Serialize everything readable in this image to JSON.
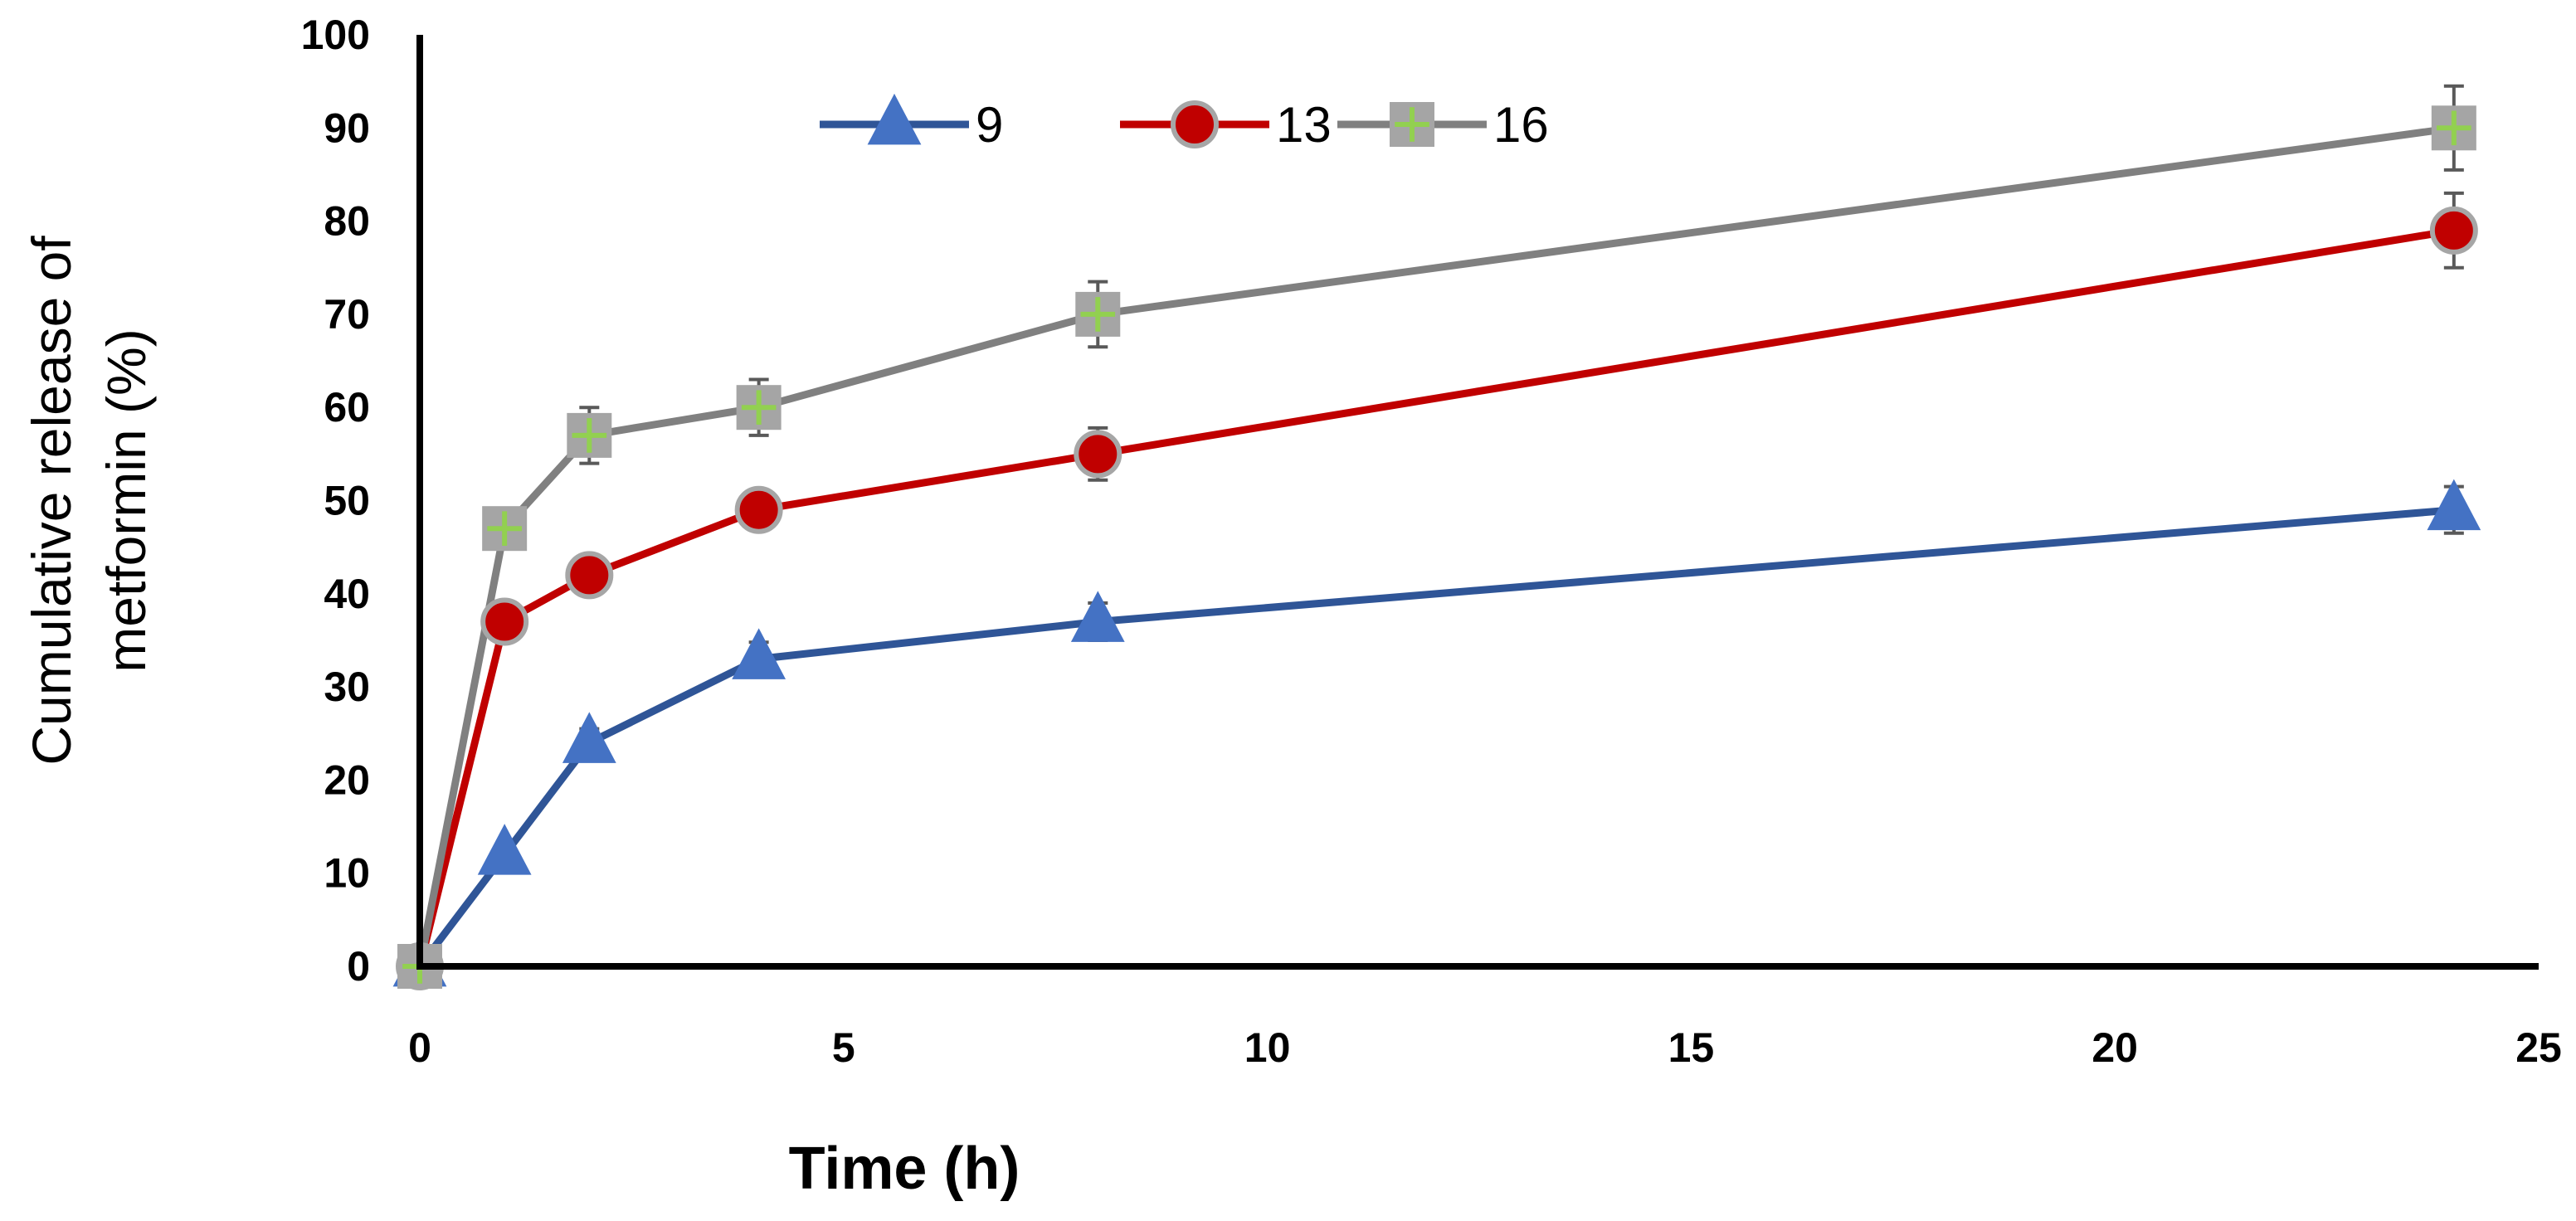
{
  "chart_data": {
    "type": "line",
    "title": "",
    "xlabel": "Time (h)",
    "ylabel_lines": [
      "Cumulative release of",
      "metformin (%)"
    ],
    "xlim": [
      0,
      25
    ],
    "ylim": [
      0,
      100
    ],
    "xticks": [
      0,
      5,
      10,
      15,
      20,
      25
    ],
    "yticks": [
      0,
      10,
      20,
      30,
      40,
      50,
      60,
      70,
      80,
      90,
      100
    ],
    "grid": false,
    "legend_position": "top-center",
    "x": [
      0,
      1,
      2,
      4,
      8,
      24
    ],
    "series": [
      {
        "name": "9",
        "values": [
          0,
          12,
          24,
          33,
          37,
          49
        ],
        "errors": [
          0,
          1.0,
          1.5,
          1.8,
          2.0,
          2.5
        ],
        "color": "#2f5597",
        "marker": "triangle",
        "marker_fill": "#4472c4",
        "marker_stroke": "#4472c4",
        "cross_color": ""
      },
      {
        "name": "13",
        "values": [
          0,
          37,
          42,
          49,
          55,
          79
        ],
        "errors": [
          0,
          1.2,
          1.5,
          2.0,
          2.8,
          4.0
        ],
        "color": "#c00000",
        "marker": "circle",
        "marker_fill": "#c00000",
        "marker_stroke": "#a6a6a6",
        "cross_color": ""
      },
      {
        "name": "16",
        "values": [
          0,
          47,
          57,
          60,
          70,
          90
        ],
        "errors": [
          0,
          2.0,
          3.0,
          3.0,
          3.5,
          4.5
        ],
        "color": "#808080",
        "marker": "square-plus",
        "marker_fill": "#a5a5a5",
        "marker_stroke": "#a5a5a5",
        "cross_color": "#92d050"
      }
    ],
    "error_bar_color": "#595959"
  }
}
